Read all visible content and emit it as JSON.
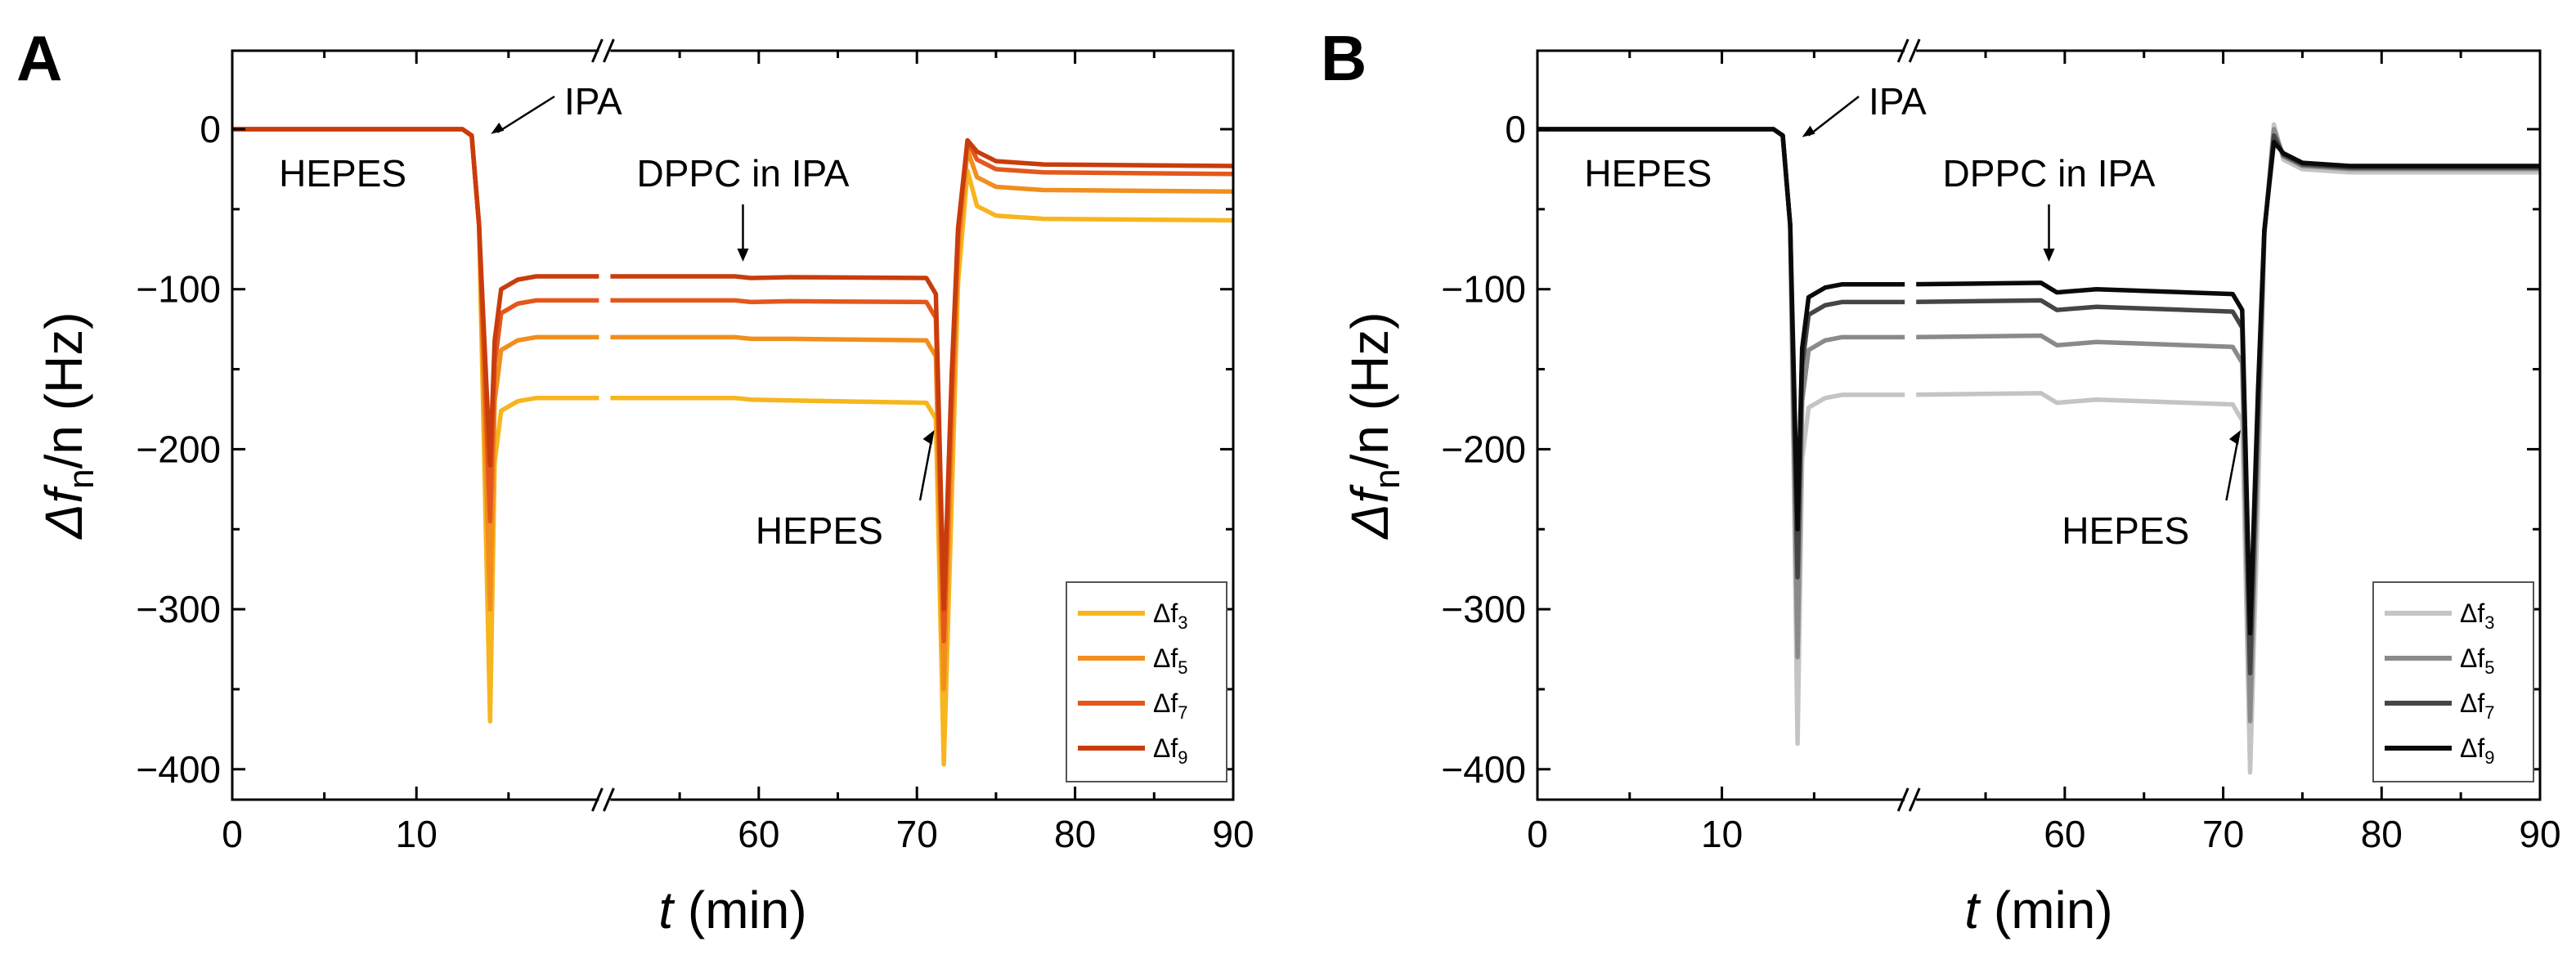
{
  "chart_data": [
    {
      "panel": "A",
      "type": "line",
      "xlabel_italic": "t",
      "xlabel_rest": " (min)",
      "ylabel_prefix": "Δf",
      "ylabel_sub": "n",
      "ylabel_rest": "/n (Hz)",
      "xticks": [
        "0",
        "10",
        "60",
        "70",
        "80",
        "90"
      ],
      "yticks": [
        "0",
        "−100",
        "−200",
        "−300",
        "−400"
      ],
      "ylim": [
        -420,
        50
      ],
      "axis_break": {
        "from": 20,
        "to": 50
      },
      "annotations": [
        {
          "text": "IPA",
          "at_t": 13.6,
          "at_y": -3
        },
        {
          "text": "HEPES",
          "at_t": 6,
          "at_y": -30
        },
        {
          "text": "DPPC in IPA",
          "at_t": 59,
          "at_y": -30
        },
        {
          "text": "HEPES",
          "at_t": 69,
          "at_y": -250
        }
      ],
      "series": [
        {
          "name": "Δf",
          "sub": "3",
          "color": "#f7b51e",
          "plateau1": -168,
          "plateau2": -171,
          "final": -56,
          "min1": -370,
          "min2": -397
        },
        {
          "name": "Δf",
          "sub": "5",
          "color": "#f18e1e",
          "plateau1": -130,
          "plateau2": -132,
          "final": -38,
          "min1": -300,
          "min2": -350
        },
        {
          "name": "Δf",
          "sub": "7",
          "color": "#e4571c",
          "plateau1": -107,
          "plateau2": -108,
          "final": -27,
          "min1": -245,
          "min2": -320
        },
        {
          "name": "Δf",
          "sub": "9",
          "color": "#c93c0c",
          "plateau1": -92,
          "plateau2": -93,
          "final": -22,
          "min1": -210,
          "min2": -300
        }
      ]
    },
    {
      "panel": "B",
      "type": "line",
      "xlabel_italic": "t",
      "xlabel_rest": " (min)",
      "ylabel_prefix": "Δf",
      "ylabel_sub": "n",
      "ylabel_rest": "/n (Hz)",
      "xticks": [
        "0",
        "10",
        "60",
        "70",
        "80",
        "90"
      ],
      "yticks": [
        "0",
        "−100",
        "−200",
        "−300",
        "−400"
      ],
      "ylim": [
        -420,
        50
      ],
      "axis_break": {
        "from": 20,
        "to": 50
      },
      "annotations": [
        {
          "text": "IPA",
          "at_t": 13.9,
          "at_y": -5
        },
        {
          "text": "HEPES",
          "at_t": 6,
          "at_y": -30
        },
        {
          "text": "DPPC in IPA",
          "at_t": 59,
          "at_y": -30
        },
        {
          "text": "HEPES",
          "at_t": 69,
          "at_y": -250
        }
      ],
      "series": [
        {
          "name": "Δf",
          "sub": "3",
          "color": "#c4c4c4",
          "plateau1": -166,
          "plateau2": -172,
          "final": -27,
          "min1": -384,
          "min2": -402
        },
        {
          "name": "Δf",
          "sub": "5",
          "color": "#8a8a8a",
          "plateau1": -130,
          "plateau2": -136,
          "final": -25,
          "min1": -330,
          "min2": -370
        },
        {
          "name": "Δf",
          "sub": "7",
          "color": "#454545",
          "plateau1": -108,
          "plateau2": -114,
          "final": -24,
          "min1": -280,
          "min2": -340
        },
        {
          "name": "Δf",
          "sub": "9",
          "color": "#0a0a0a",
          "plateau1": -97,
          "plateau2": -103,
          "final": -23,
          "min1": -250,
          "min2": -315
        }
      ]
    }
  ]
}
